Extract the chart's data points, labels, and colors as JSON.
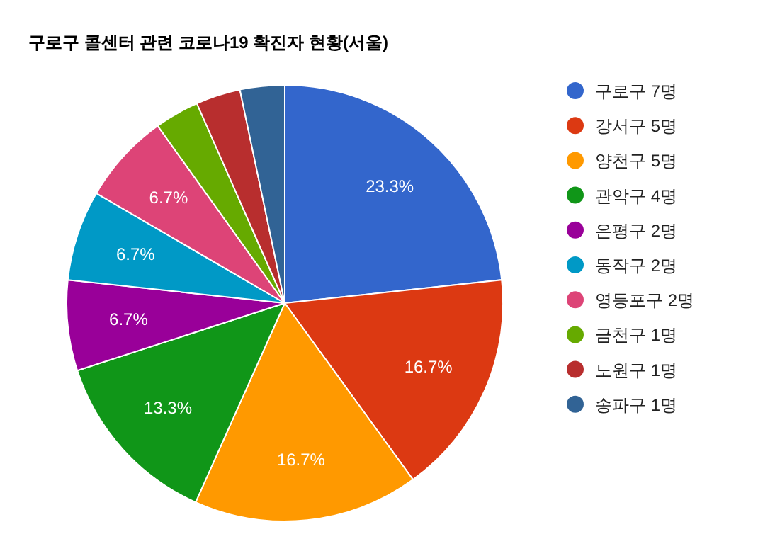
{
  "chart_data": {
    "type": "pie",
    "title": "구로구 콜센터 관련 코로나19 확진자 현황(서울)",
    "categories": [
      "구로구 7명",
      "강서구 5명",
      "양천구 5명",
      "관악구 4명",
      "은평구 2명",
      "동작구 2명",
      "영등포구 2명",
      "금천구 1명",
      "노원구 1명",
      "송파구 1명"
    ],
    "values": [
      23.3,
      16.7,
      16.7,
      13.3,
      6.7,
      6.7,
      6.7,
      3.3,
      3.3,
      3.3
    ],
    "colors": [
      "#3366cc",
      "#dc3912",
      "#ff9900",
      "#109618",
      "#990099",
      "#0099c6",
      "#dd4477",
      "#66aa00",
      "#b82e2e",
      "#316395"
    ],
    "value_labels": [
      "23.3%",
      "16.7%",
      "16.7%",
      "13.3%",
      "6.7%",
      "6.7%",
      "6.7%",
      null,
      null,
      null
    ],
    "legend": "right"
  }
}
